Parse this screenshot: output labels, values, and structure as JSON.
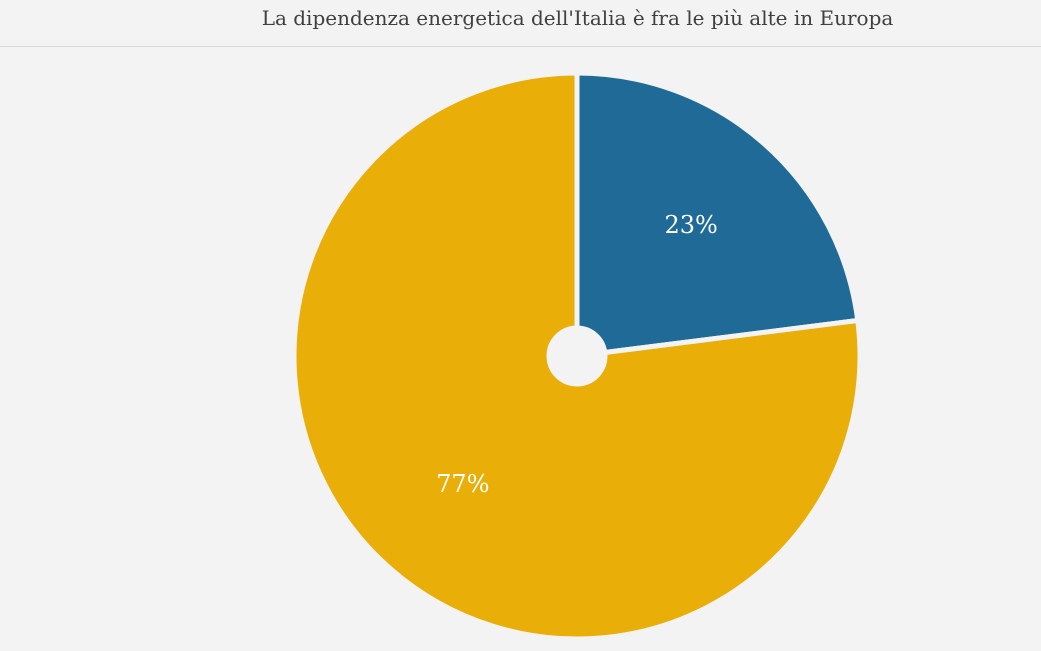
{
  "chart_data": {
    "type": "pie",
    "subtitle": "La dipendenza energetica dell'Italia è fra le più alte in Europa",
    "slices": [
      {
        "value": 23,
        "label": "23%",
        "color": "#1f6a96"
      },
      {
        "value": 77,
        "label": "77%",
        "color": "#eaae08"
      }
    ]
  }
}
